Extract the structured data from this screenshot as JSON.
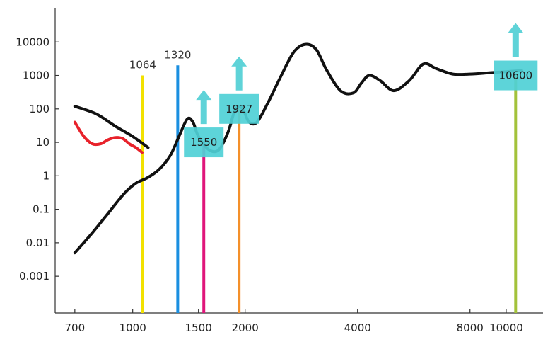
{
  "chart_data": {
    "type": "line",
    "title": "",
    "xlabel": "",
    "ylabel": "",
    "x_scale": "log",
    "y_scale": "log",
    "xlim": [
      620,
      11500
    ],
    "ylim": [
      8e-05,
      100000
    ],
    "x_tick_labels": [
      "700",
      "1000",
      "1500",
      "2000",
      "4000",
      "8000",
      "10000"
    ],
    "x_tick_values": [
      700,
      1000,
      1500,
      2000,
      4000,
      8000,
      10000
    ],
    "y_tick_labels": [
      "10000",
      "1000",
      "100",
      "10",
      "1",
      "0.1",
      "0.01",
      "0.001"
    ],
    "y_tick_values": [
      10000,
      1000,
      100,
      10,
      1,
      0.1,
      0.01,
      0.001
    ],
    "series": [
      {
        "color": "#111111",
        "x": [
          700,
          780,
          870,
          950,
          1020,
          1100,
          1180,
          1260,
          1330,
          1400,
          1450,
          1500,
          1600,
          1700,
          1800,
          1870,
          1930,
          1990,
          2050,
          2150,
          2300,
          2500,
          2700,
          2900,
          3100,
          3300,
          3600,
          3900,
          4100,
          4300,
          4600,
          5000,
          5500,
          6000,
          6500,
          7200,
          8000,
          9000,
          10000,
          11000
        ],
        "y": [
          0.005,
          0.02,
          0.09,
          0.3,
          0.6,
          0.9,
          1.6,
          4,
          15,
          50,
          40,
          15,
          6,
          6,
          20,
          80,
          120,
          80,
          40,
          40,
          150,
          1000,
          5000,
          8500,
          6000,
          1500,
          350,
          300,
          600,
          1000,
          700,
          350,
          700,
          2200,
          1600,
          1100,
          1100,
          1200,
          1300,
          1400
        ]
      },
      {
        "color": "#111111",
        "x": [
          700,
          800,
          900,
          1000,
          1100
        ],
        "y": [
          120,
          70,
          30,
          15,
          7
        ]
      },
      {
        "color": "#e8222b",
        "x": [
          700,
          740,
          780,
          820,
          860,
          900,
          940,
          980,
          1020,
          1060
        ],
        "y": [
          40,
          15,
          9,
          9,
          12,
          14,
          13,
          9,
          7,
          5
        ]
      }
    ],
    "markers": [
      {
        "wavelength": 1064,
        "label": "1064",
        "color": "#f2e100",
        "y_top": 1000,
        "boxed": false,
        "arrow": false
      },
      {
        "wavelength": 1320,
        "label": "1320",
        "color": "#1a8fe0",
        "y_top": 2000,
        "boxed": false,
        "arrow": false
      },
      {
        "wavelength": 1550,
        "label": "1550",
        "color": "#e0157a",
        "y_top": 10,
        "boxed": true,
        "arrow": true
      },
      {
        "wavelength": 1927,
        "label": "1927",
        "color": "#f4902a",
        "y_top": 100,
        "boxed": true,
        "arrow": true
      },
      {
        "wavelength": 10600,
        "label": "10600",
        "color": "#a3c23a",
        "y_top": 1000,
        "boxed": true,
        "arrow": true
      }
    ],
    "box_color": "#4fd0d6",
    "arrow_color": "#5fd3d8",
    "grid": false,
    "legend": "none"
  }
}
